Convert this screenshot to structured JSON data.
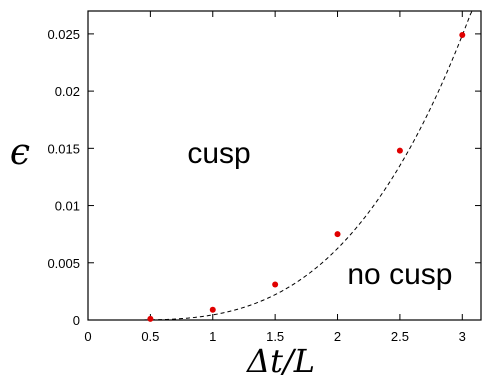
{
  "chart_data": {
    "type": "scatter",
    "xlabel": "Δt/L",
    "ylabel": "ϵ",
    "xlim": [
      0,
      3.15
    ],
    "ylim": [
      0,
      0.027
    ],
    "xticks": [
      0,
      0.5,
      1,
      1.5,
      2,
      2.5,
      3
    ],
    "xtick_labels": [
      "0",
      "0.5",
      "1",
      "1.5",
      "2",
      "2.5",
      "3"
    ],
    "yticks": [
      0,
      0.005,
      0.01,
      0.015,
      0.02,
      0.025
    ],
    "ytick_labels": [
      "0",
      "0.005",
      "0.01",
      "0.015",
      "0.02",
      "0.025"
    ],
    "grid": false,
    "points": {
      "x": [
        0.5,
        1.0,
        1.5,
        2.0,
        2.5,
        3.0
      ],
      "y": [
        0.0001,
        0.0009,
        0.0031,
        0.0075,
        0.0148,
        0.0249
      ],
      "color": "#e00000"
    },
    "fit_curve": {
      "style": "dashed",
      "color": "#000000",
      "model": "a*(x-x0)^3",
      "a": 0.00125,
      "x0": 0.29
    },
    "annotations": [
      {
        "text": "cusp",
        "x": 1.05,
        "y": 0.0146
      },
      {
        "text": "no cusp",
        "x": 2.5,
        "y": 0.004
      }
    ]
  }
}
